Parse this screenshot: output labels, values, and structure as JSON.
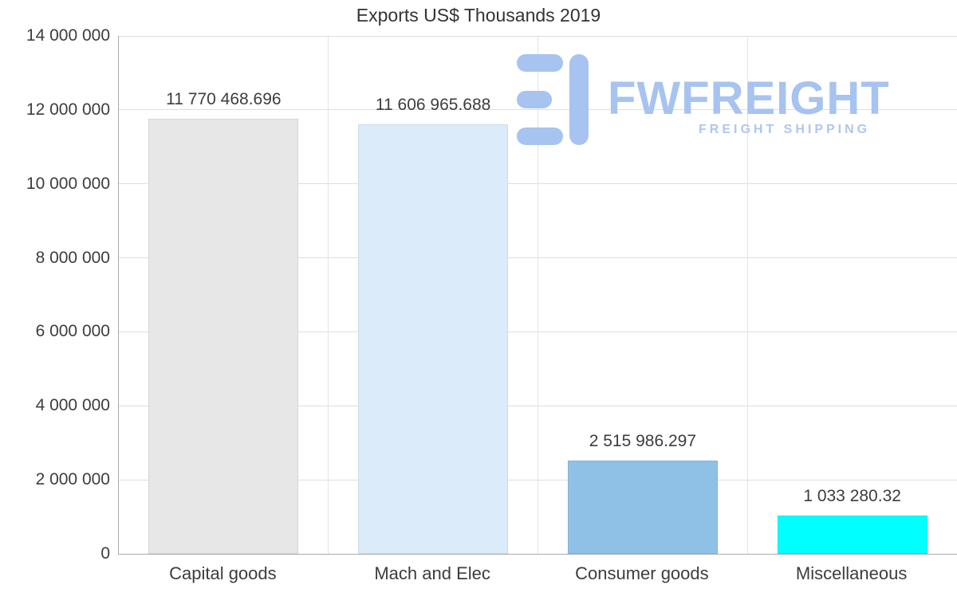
{
  "chart_data": {
    "type": "bar",
    "title": "Exports US$ Thousands 2019",
    "categories": [
      "Capital goods",
      "Mach and Elec",
      "Consumer goods",
      "Miscellaneous"
    ],
    "values": [
      11770468.696,
      11606965.688,
      2515986.297,
      1033280.32
    ],
    "value_labels": [
      "11 770 468.696",
      "11 606 965.688",
      "2 515 986.297",
      "1 033 280.32"
    ],
    "bar_colors": [
      "#e7e7e7",
      "#dcebfa",
      "#8fc1e7",
      "#00ffff"
    ],
    "xlabel": "",
    "ylabel": "",
    "ylim": [
      0,
      14000000
    ],
    "y_tick_values": [
      14000000,
      12000000,
      10000000,
      8000000,
      6000000,
      4000000,
      2000000,
      0
    ],
    "y_tick_labels": [
      "14 000 000",
      "12 000 000",
      "10 000 000",
      "8 000 000",
      "6 000 000",
      "4 000 000",
      "2 000 000",
      "0"
    ],
    "grid": "light horizontal gridlines at each 2 000 000 step and light vertical gridlines between category slots",
    "legend": "none"
  },
  "watermark": {
    "brand": "FWFREIGHT",
    "tagline": "FREIGHT SHIPPING",
    "color": "#a7c3f0"
  },
  "colors": {
    "background": "#ffffff",
    "axis_line": "#a9a9a9",
    "gridline": "#dedede",
    "label_text": "#3d3d3d",
    "title_text": "#333333"
  }
}
